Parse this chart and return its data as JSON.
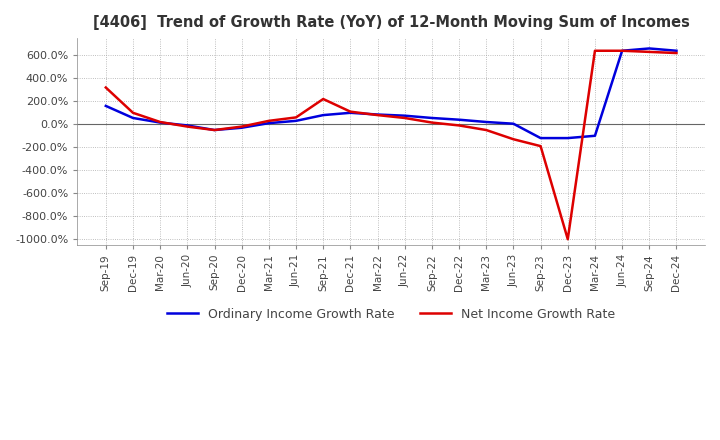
{
  "title": "[4406]  Trend of Growth Rate (YoY) of 12-Month Moving Sum of Incomes",
  "title_fontsize": 10.5,
  "background_color": "#ffffff",
  "plot_background": "#ffffff",
  "grid_color": "#aaaaaa",
  "ylim": [
    -1050,
    750
  ],
  "yticks": [
    600,
    400,
    200,
    0,
    -200,
    -400,
    -600,
    -800,
    -1000
  ],
  "ytick_labels": [
    "600.0%",
    "400.0%",
    "200.0%",
    "0.0%",
    "-200.0%",
    "-400.0%",
    "-600.0%",
    "-800.0%",
    "-1000.0%"
  ],
  "x_labels": [
    "Sep-19",
    "Dec-19",
    "Mar-20",
    "Jun-20",
    "Sep-20",
    "Dec-20",
    "Mar-21",
    "Jun-21",
    "Sep-21",
    "Dec-21",
    "Mar-22",
    "Jun-22",
    "Sep-22",
    "Dec-22",
    "Mar-23",
    "Jun-23",
    "Sep-23",
    "Dec-23",
    "Mar-24",
    "Jun-24",
    "Sep-24",
    "Dec-24"
  ],
  "ordinary_income": [
    160,
    55,
    15,
    -10,
    -50,
    -30,
    10,
    30,
    80,
    100,
    85,
    75,
    55,
    40,
    20,
    5,
    -120,
    -120,
    -100,
    640,
    660,
    640
  ],
  "net_income": [
    320,
    100,
    20,
    -20,
    -50,
    -20,
    30,
    60,
    220,
    110,
    80,
    55,
    15,
    -10,
    -50,
    -130,
    -190,
    -1000,
    640,
    640,
    630,
    620
  ],
  "ordinary_color": "#0000dd",
  "net_color": "#dd0000",
  "line_width": 1.8,
  "legend_ordinary": "Ordinary Income Growth Rate",
  "legend_net": "Net Income Growth Rate"
}
